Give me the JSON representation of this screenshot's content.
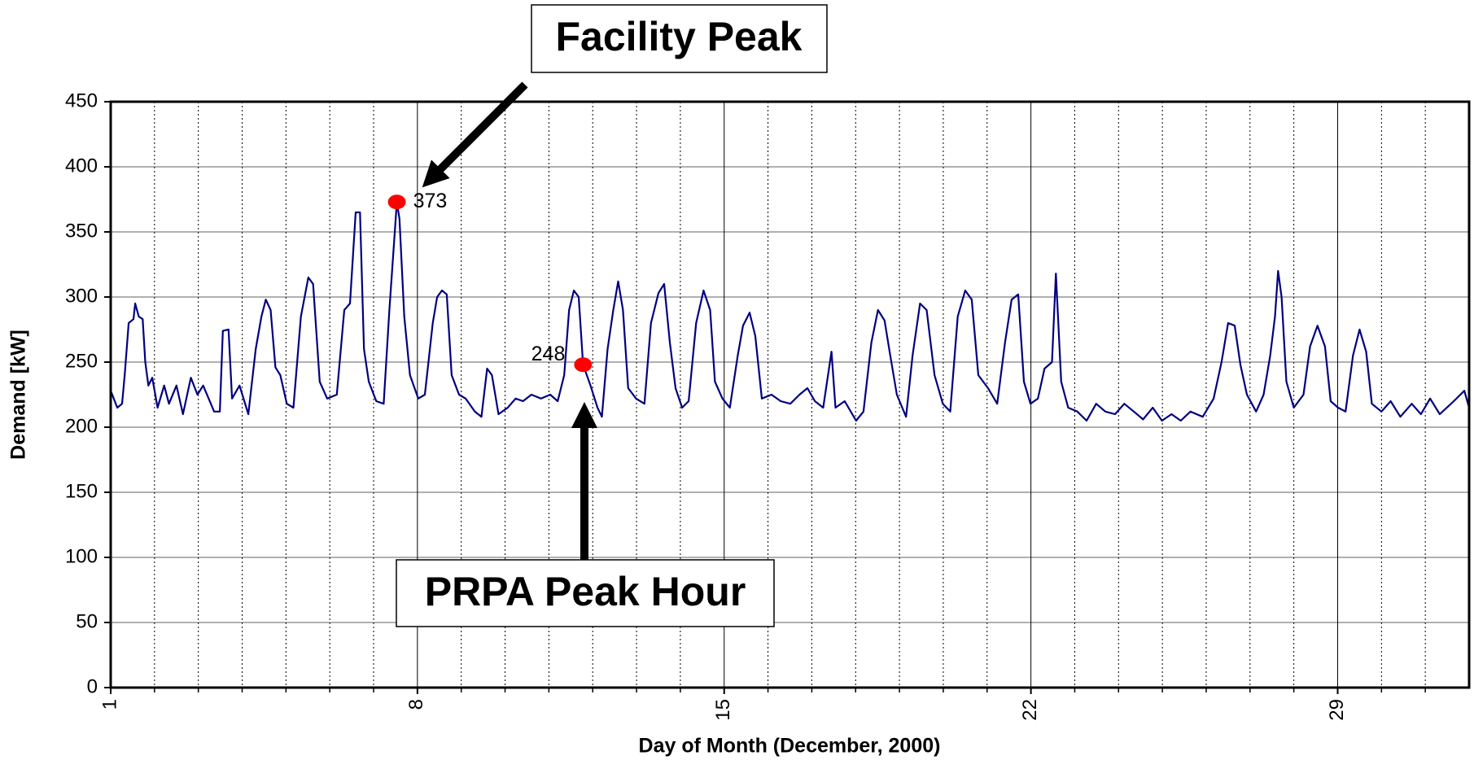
{
  "chart_data": {
    "type": "line",
    "x_label": "Day of Month (December, 2000)",
    "y_label": "Demand [kW]",
    "xlim": [
      1,
      32
    ],
    "ylim": [
      0,
      450
    ],
    "xticks": [
      1,
      8,
      15,
      22,
      29
    ],
    "xminorticks": [
      2,
      3,
      4,
      5,
      6,
      7,
      9,
      10,
      11,
      12,
      13,
      14,
      16,
      17,
      18,
      19,
      20,
      21,
      23,
      24,
      25,
      26,
      27,
      28,
      30,
      31
    ],
    "yticks": [
      0,
      50,
      100,
      150,
      200,
      250,
      300,
      350,
      400,
      450
    ],
    "grid": true,
    "series": [
      {
        "name": "Demand",
        "color": "#000080",
        "x": [
          1.0,
          1.15,
          1.26,
          1.32,
          1.41,
          1.52,
          1.56,
          1.64,
          1.73,
          1.79,
          1.86,
          1.95,
          2.07,
          2.22,
          2.33,
          2.5,
          2.65,
          2.83,
          2.98,
          3.11,
          3.36,
          3.49,
          3.56,
          3.69,
          3.77,
          3.94,
          4.14,
          4.31,
          4.44,
          4.54,
          4.65,
          4.76,
          4.87,
          5.02,
          5.17,
          5.34,
          5.51,
          5.62,
          5.77,
          5.94,
          6.16,
          6.33,
          6.46,
          6.59,
          6.69,
          6.78,
          6.89,
          7.06,
          7.23,
          7.36,
          7.53,
          7.59,
          7.7,
          7.83,
          8.02,
          8.17,
          8.35,
          8.45,
          8.56,
          8.67,
          8.78,
          8.95,
          9.1,
          9.31,
          9.46,
          9.59,
          9.7,
          9.85,
          10.06,
          10.24,
          10.41,
          10.6,
          10.82,
          11.03,
          11.2,
          11.35,
          11.46,
          11.57,
          11.68,
          11.78,
          11.95,
          12.11,
          12.21,
          12.34,
          12.47,
          12.58,
          12.69,
          12.81,
          12.99,
          13.18,
          13.33,
          13.5,
          13.63,
          13.76,
          13.89,
          14.04,
          14.19,
          14.36,
          14.53,
          14.68,
          14.79,
          14.96,
          15.13,
          15.31,
          15.43,
          15.58,
          15.71,
          15.86,
          16.08,
          16.29,
          16.51,
          16.72,
          16.9,
          17.07,
          17.26,
          17.45,
          17.54,
          17.75,
          18.01,
          18.18,
          18.36,
          18.51,
          18.66,
          18.79,
          18.94,
          19.15,
          19.3,
          19.47,
          19.62,
          19.8,
          19.99,
          20.16,
          20.33,
          20.5,
          20.65,
          20.8,
          21.02,
          21.23,
          21.41,
          21.56,
          21.71,
          21.84,
          21.99,
          22.16,
          22.31,
          22.48,
          22.57,
          22.69,
          22.85,
          23.06,
          23.27,
          23.49,
          23.7,
          23.92,
          24.13,
          24.35,
          24.56,
          24.78,
          24.99,
          25.21,
          25.42,
          25.64,
          25.92,
          26.17,
          26.35,
          26.5,
          26.65,
          26.78,
          26.93,
          27.14,
          27.31,
          27.46,
          27.57,
          27.64,
          27.72,
          27.83,
          28.0,
          28.22,
          28.37,
          28.54,
          28.71,
          28.84,
          29.01,
          29.18,
          29.35,
          29.5,
          29.65,
          29.78,
          30.0,
          30.21,
          30.43,
          30.69,
          30.9,
          31.11,
          31.33,
          31.65,
          31.89,
          32.0
        ],
        "values": [
          228,
          215,
          218,
          240,
          280,
          283,
          295,
          285,
          283,
          250,
          232,
          238,
          215,
          232,
          218,
          232,
          210,
          238,
          225,
          232,
          212,
          212,
          274,
          275,
          222,
          232,
          210,
          260,
          285,
          298,
          290,
          246,
          240,
          218,
          215,
          285,
          315,
          310,
          235,
          222,
          225,
          290,
          295,
          365,
          365,
          260,
          235,
          220,
          218,
          290,
          373,
          360,
          285,
          240,
          222,
          225,
          280,
          300,
          305,
          302,
          240,
          225,
          222,
          212,
          208,
          245,
          240,
          210,
          215,
          222,
          220,
          225,
          222,
          225,
          220,
          240,
          290,
          305,
          300,
          248,
          232,
          215,
          208,
          260,
          290,
          312,
          290,
          230,
          222,
          218,
          280,
          303,
          310,
          265,
          230,
          215,
          220,
          280,
          305,
          290,
          235,
          222,
          215,
          255,
          278,
          288,
          270,
          222,
          225,
          220,
          218,
          225,
          230,
          220,
          215,
          258,
          215,
          220,
          205,
          212,
          265,
          290,
          282,
          255,
          225,
          208,
          255,
          295,
          290,
          240,
          218,
          212,
          285,
          305,
          298,
          240,
          230,
          218,
          265,
          298,
          302,
          235,
          218,
          222,
          245,
          250,
          318,
          235,
          215,
          212,
          205,
          218,
          212,
          210,
          218,
          212,
          206,
          215,
          205,
          210,
          205,
          212,
          208,
          222,
          250,
          280,
          278,
          248,
          225,
          212,
          225,
          255,
          285,
          320,
          300,
          235,
          215,
          225,
          262,
          278,
          262,
          220,
          215,
          212,
          255,
          275,
          258,
          218,
          212,
          220,
          208,
          218,
          210,
          222,
          210,
          220,
          228,
          215
        ]
      }
    ],
    "highlights": [
      {
        "x": 7.53,
        "value": 373
      },
      {
        "x": 11.78,
        "value": 248
      }
    ],
    "highlight_color": "#ff0000",
    "annotations": [
      "Facility Peak",
      "PRPA Peak Hour"
    ]
  }
}
